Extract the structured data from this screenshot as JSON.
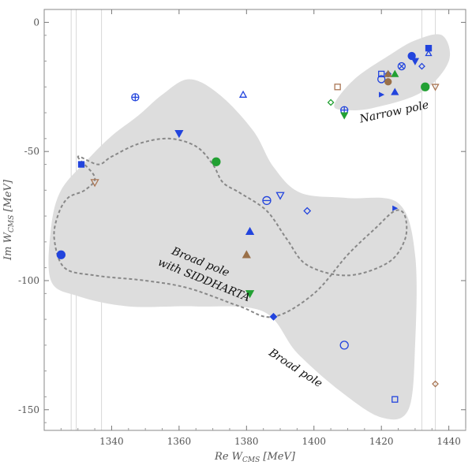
{
  "chart_data": {
    "type": "scatter",
    "title": "",
    "xlabel_main": "Re W",
    "xlabel_sub": "CMS",
    "xlabel_unit": " [MeV]",
    "ylabel_main": "Im W",
    "ylabel_sub": "CMS",
    "ylabel_unit": " [MeV]",
    "xlim": [
      1320,
      1445
    ],
    "ylim": [
      -158,
      5
    ],
    "x_ticks": [
      1340,
      1360,
      1380,
      1400,
      1420,
      1440
    ],
    "y_ticks": [
      0,
      -50,
      -100,
      -150
    ],
    "x_tick_labels": [
      "1340",
      "1360",
      "1380",
      "1400",
      "1420",
      "1440"
    ],
    "y_tick_labels": [
      "0",
      "-50",
      "-100",
      "-150"
    ],
    "vertical_lines_x": [
      1328,
      1329.5,
      1337,
      1432,
      1436
    ],
    "annotations": [
      {
        "text": "Narrow pole",
        "x": 1424,
        "y": -36,
        "rotate": -12
      },
      {
        "text": "Broad pole",
        "x": 1394,
        "y": -135,
        "rotate": 33
      },
      {
        "text": "Broad pole",
        "x": 1366,
        "y": -94,
        "rotate": 22
      },
      {
        "text": "with SIDDHARTA",
        "x": 1367,
        "y": -101,
        "rotate": 22
      }
    ],
    "regions": [
      {
        "name": "narrow-pole-region",
        "fill": "#dddddd",
        "points": [
          [
            1406,
            -32
          ],
          [
            1412,
            -22
          ],
          [
            1422,
            -13
          ],
          [
            1430,
            -7
          ],
          [
            1438,
            -5
          ],
          [
            1440,
            -15
          ],
          [
            1432,
            -27
          ],
          [
            1418,
            -33
          ],
          [
            1410,
            -34
          ]
        ]
      },
      {
        "name": "broad-pole-region",
        "fill": "#dddddd",
        "points": [
          [
            1333,
            -53
          ],
          [
            1340,
            -44
          ],
          [
            1348,
            -36
          ],
          [
            1355,
            -28
          ],
          [
            1363,
            -22
          ],
          [
            1372,
            -28
          ],
          [
            1382,
            -42
          ],
          [
            1388,
            -56
          ],
          [
            1396,
            -66
          ],
          [
            1410,
            -68
          ],
          [
            1425,
            -70
          ],
          [
            1430,
            -90
          ],
          [
            1430,
            -125
          ],
          [
            1428,
            -150
          ],
          [
            1420,
            -153
          ],
          [
            1408,
            -143
          ],
          [
            1395,
            -128
          ],
          [
            1385,
            -112
          ],
          [
            1365,
            -110
          ],
          [
            1345,
            -110
          ],
          [
            1330,
            -106
          ],
          [
            1322,
            -100
          ],
          [
            1322,
            -80
          ],
          [
            1325,
            -65
          ]
        ]
      },
      {
        "name": "siddharta-region",
        "fill": "none",
        "stroke": "#888888",
        "dash": true,
        "points": [
          [
            1330,
            -52
          ],
          [
            1335,
            -60
          ],
          [
            1332,
            -65
          ],
          [
            1327,
            -68
          ],
          [
            1324,
            -75
          ],
          [
            1323,
            -84
          ],
          [
            1326,
            -95
          ],
          [
            1335,
            -98
          ],
          [
            1350,
            -100
          ],
          [
            1363,
            -103
          ],
          [
            1378,
            -110
          ],
          [
            1388,
            -114
          ],
          [
            1400,
            -105
          ],
          [
            1410,
            -90
          ],
          [
            1418,
            -80
          ],
          [
            1424,
            -73
          ],
          [
            1427,
            -75
          ],
          [
            1427,
            -84
          ],
          [
            1422,
            -93
          ],
          [
            1410,
            -98
          ],
          [
            1398,
            -94
          ],
          [
            1392,
            -84
          ],
          [
            1386,
            -73
          ],
          [
            1378,
            -66
          ],
          [
            1373,
            -62
          ],
          [
            1370,
            -55
          ],
          [
            1365,
            -48
          ],
          [
            1357,
            -45
          ],
          [
            1348,
            -47
          ],
          [
            1340,
            -52
          ],
          [
            1336,
            -55
          ]
        ]
      }
    ],
    "points": [
      {
        "x": 1347,
        "y": -29,
        "shape": "circle-plus",
        "fill": "none",
        "color": "#2244dd",
        "size": 9
      },
      {
        "x": 1379,
        "y": -28,
        "shape": "triangle-up",
        "fill": "none",
        "color": "#2244dd",
        "size": 8
      },
      {
        "x": 1360,
        "y": -43,
        "shape": "triangle-down",
        "fill": "#2244dd",
        "color": "#2244dd",
        "size": 9
      },
      {
        "x": 1371,
        "y": -54,
        "shape": "circle",
        "fill": "#22a033",
        "color": "#22a033",
        "size": 10
      },
      {
        "x": 1331,
        "y": -55,
        "shape": "square",
        "fill": "#2244dd",
        "color": "#2244dd",
        "size": 7
      },
      {
        "x": 1335,
        "y": -62,
        "shape": "triangle-down",
        "fill": "none",
        "color": "#aa7755",
        "size": 9
      },
      {
        "x": 1386,
        "y": -69,
        "shape": "circle-minus",
        "fill": "none",
        "color": "#2244dd",
        "size": 10
      },
      {
        "x": 1390,
        "y": -67,
        "shape": "triangle-down",
        "fill": "none",
        "color": "#2244dd",
        "size": 9
      },
      {
        "x": 1398,
        "y": -73,
        "shape": "diamond",
        "fill": "none",
        "color": "#2244dd",
        "size": 8
      },
      {
        "x": 1424,
        "y": -72,
        "shape": "triangle-right",
        "fill": "#2244dd",
        "color": "#2244dd",
        "size": 5
      },
      {
        "x": 1325,
        "y": -90,
        "shape": "circle",
        "fill": "#2244dd",
        "color": "#2244dd",
        "size": 10
      },
      {
        "x": 1381,
        "y": -81,
        "shape": "triangle-up",
        "fill": "#2244dd",
        "color": "#2244dd",
        "size": 9
      },
      {
        "x": 1380,
        "y": -90,
        "shape": "triangle-up",
        "fill": "#9a7048",
        "color": "#9a7048",
        "size": 9
      },
      {
        "x": 1381,
        "y": -105,
        "shape": "triangle-down",
        "fill": "#22a033",
        "color": "#22a033",
        "size": 9
      },
      {
        "x": 1388,
        "y": -114,
        "shape": "diamond",
        "fill": "#2244dd",
        "color": "#2244dd",
        "size": 8
      },
      {
        "x": 1409,
        "y": -125,
        "shape": "circle",
        "fill": "none",
        "color": "#2244dd",
        "size": 10
      },
      {
        "x": 1424,
        "y": -146,
        "shape": "square",
        "fill": "none",
        "color": "#2244dd",
        "size": 7
      },
      {
        "x": 1436,
        "y": -140,
        "shape": "diamond",
        "fill": "none",
        "color": "#aa7755",
        "size": 7
      },
      {
        "x": 1407,
        "y": -25,
        "shape": "square",
        "fill": "none",
        "color": "#aa7755",
        "size": 7
      },
      {
        "x": 1405,
        "y": -31,
        "shape": "diamond",
        "fill": "none",
        "color": "#22a033",
        "size": 7
      },
      {
        "x": 1409,
        "y": -34,
        "shape": "circle-plus",
        "fill": "none",
        "color": "#2244dd",
        "size": 9
      },
      {
        "x": 1409,
        "y": -36,
        "shape": "triangle-down",
        "fill": "#22a033",
        "color": "#22a033",
        "size": 8
      },
      {
        "x": 1420,
        "y": -20,
        "shape": "square",
        "fill": "none",
        "color": "#2244dd",
        "size": 7
      },
      {
        "x": 1420,
        "y": -22,
        "shape": "circle",
        "fill": "none",
        "color": "#2244dd",
        "size": 9
      },
      {
        "x": 1422,
        "y": -20,
        "shape": "diamond",
        "fill": "#2244dd",
        "color": "#2244dd",
        "size": 7
      },
      {
        "x": 1422,
        "y": -23,
        "shape": "circle",
        "fill": "#9a7048",
        "color": "#9a7048",
        "size": 8
      },
      {
        "x": 1424,
        "y": -20,
        "shape": "triangle-up",
        "fill": "#22a033",
        "color": "#22a033",
        "size": 8
      },
      {
        "x": 1422,
        "y": -20,
        "shape": "triangle-up",
        "fill": "#9a7048",
        "color": "#9a7048",
        "size": 8
      },
      {
        "x": 1424,
        "y": -27,
        "shape": "triangle-up",
        "fill": "#2244dd",
        "color": "#2244dd",
        "size": 8
      },
      {
        "x": 1420,
        "y": -28,
        "shape": "triangle-right",
        "fill": "#2244dd",
        "color": "#2244dd",
        "size": 5
      },
      {
        "x": 1426,
        "y": -17,
        "shape": "circle-x",
        "fill": "none",
        "color": "#2244dd",
        "size": 9
      },
      {
        "x": 1429,
        "y": -13,
        "shape": "circle",
        "fill": "#2244dd",
        "color": "#2244dd",
        "size": 9
      },
      {
        "x": 1430,
        "y": -15,
        "shape": "triangle-down",
        "fill": "#2244dd",
        "color": "#2244dd",
        "size": 8
      },
      {
        "x": 1432,
        "y": -17,
        "shape": "diamond",
        "fill": "none",
        "color": "#2244dd",
        "size": 7
      },
      {
        "x": 1434,
        "y": -10,
        "shape": "square",
        "fill": "#2244dd",
        "color": "#2244dd",
        "size": 7
      },
      {
        "x": 1434,
        "y": -12,
        "shape": "triangle-up",
        "fill": "none",
        "color": "#2244dd",
        "size": 7
      },
      {
        "x": 1433,
        "y": -25,
        "shape": "circle",
        "fill": "#22a033",
        "color": "#22a033",
        "size": 10
      },
      {
        "x": 1436,
        "y": -25,
        "shape": "triangle-down",
        "fill": "none",
        "color": "#aa7755",
        "size": 8
      }
    ]
  }
}
